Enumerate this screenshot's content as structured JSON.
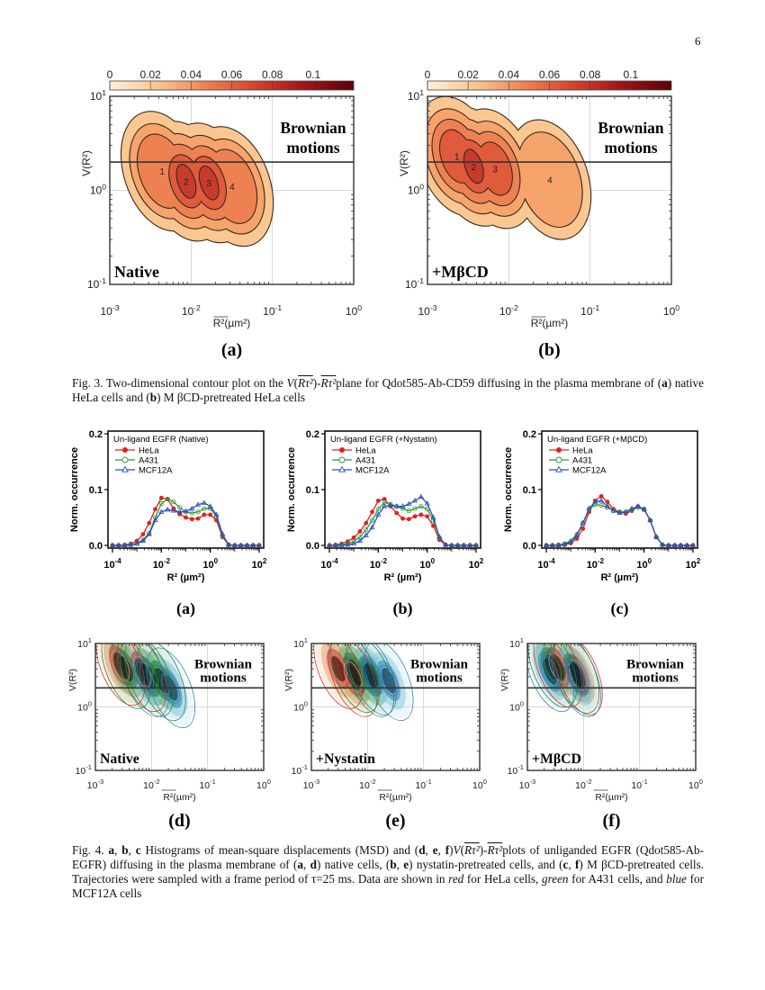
{
  "page_number": "6",
  "fig3": {
    "caption": [
      {
        "t": "Fig. 3. Two-dimensional contour plot on the ",
        "s": ""
      },
      {
        "t": "V",
        "s": "i"
      },
      {
        "t": "(",
        "s": ""
      },
      {
        "t": "Rτ²",
        "s": "ov"
      },
      {
        "t": ")-",
        "s": ""
      },
      {
        "t": "Rτ²",
        "s": "ov"
      },
      {
        "t": "plane for Qdot585-Ab-CD59 diffusing in the plasma membrane of (",
        "s": ""
      },
      {
        "t": "a",
        "s": "b"
      },
      {
        "t": ") native HeLa cells and (",
        "s": ""
      },
      {
        "t": "b",
        "s": "b"
      },
      {
        "t": ") M βCD-pretreated HeLa cells",
        "s": ""
      }
    ]
  },
  "fig4": {
    "caption": [
      {
        "t": "Fig. 4. ",
        "s": ""
      },
      {
        "t": "a",
        "s": "b"
      },
      {
        "t": ", ",
        "s": ""
      },
      {
        "t": "b",
        "s": "b"
      },
      {
        "t": ", ",
        "s": ""
      },
      {
        "t": "c",
        "s": "b"
      },
      {
        "t": " Histograms of mean-square displacements (MSD) and (",
        "s": ""
      },
      {
        "t": "d",
        "s": "b"
      },
      {
        "t": ", ",
        "s": ""
      },
      {
        "t": "e",
        "s": "b"
      },
      {
        "t": ", ",
        "s": ""
      },
      {
        "t": "f",
        "s": "b"
      },
      {
        "t": ")",
        "s": ""
      },
      {
        "t": "V",
        "s": "i"
      },
      {
        "t": "(",
        "s": ""
      },
      {
        "t": "Rτ²",
        "s": "ov"
      },
      {
        "t": ")-",
        "s": ""
      },
      {
        "t": "Rτ²",
        "s": "ov"
      },
      {
        "t": "plots of unliganded EGFR (Qdot585-Ab-EGFR) diffusing in the plasma membrane of (",
        "s": ""
      },
      {
        "t": "a",
        "s": "b"
      },
      {
        "t": ", ",
        "s": ""
      },
      {
        "t": "d",
        "s": "b"
      },
      {
        "t": ") native cells, (",
        "s": ""
      },
      {
        "t": "b",
        "s": "b"
      },
      {
        "t": ", ",
        "s": ""
      },
      {
        "t": "e",
        "s": "b"
      },
      {
        "t": ") nystatin-pretreated cells, and (",
        "s": ""
      },
      {
        "t": "c",
        "s": "b"
      },
      {
        "t": ", ",
        "s": ""
      },
      {
        "t": "f",
        "s": "b"
      },
      {
        "t": ") M βCD-pretreated cells. Trajectories were sampled with a frame period of τ=25 ms. Data are shown in ",
        "s": ""
      },
      {
        "t": "red",
        "s": "i"
      },
      {
        "t": " for HeLa cells, ",
        "s": ""
      },
      {
        "t": "green",
        "s": "i"
      },
      {
        "t": " for A431 cells, and ",
        "s": ""
      },
      {
        "t": "blue",
        "s": "i"
      },
      {
        "t": " for MCF12A cells",
        "s": ""
      }
    ]
  },
  "chart_data": [
    {
      "id": "fig3a",
      "type": "heatmap",
      "panel_label": "(a)",
      "xlabel": "R²(µm²)",
      "ylabel": "V(R²)",
      "x_scale": "log",
      "y_scale": "log",
      "xlim": [
        0.001,
        1
      ],
      "ylim": [
        0.1,
        10
      ],
      "x_ticks": [
        "10^-3",
        "10^-2",
        "10^-1",
        "10^0"
      ],
      "y_ticks": [
        "10^1",
        "10^0",
        "10^-1"
      ],
      "colorbar": {
        "ticks": [
          "0",
          "0.02",
          "0.04",
          "0.06",
          "0.08",
          "0.1"
        ],
        "range": [
          0,
          0.12
        ],
        "colors": [
          "#fdf1dc",
          "#f9c48e",
          "#ef8050",
          "#d6402c",
          "#9e1515",
          "#5c0008"
        ]
      },
      "threshold_line_y": 2,
      "annotations": [
        "Brownian",
        "motions",
        "Native"
      ],
      "peaks": [
        {
          "label": "1",
          "x": 0.0044,
          "y": 1.6,
          "levels": 3
        },
        {
          "label": "2",
          "x": 0.0087,
          "y": 1.25,
          "levels": 5
        },
        {
          "label": "3",
          "x": 0.0166,
          "y": 1.2,
          "levels": 5
        },
        {
          "label": "4",
          "x": 0.032,
          "y": 1.1,
          "levels": 3
        }
      ]
    },
    {
      "id": "fig3b",
      "type": "heatmap",
      "panel_label": "(b)",
      "xlabel": "R²(µm²)",
      "ylabel": "V(R²)",
      "x_scale": "log",
      "y_scale": "log",
      "xlim": [
        0.001,
        1
      ],
      "ylim": [
        0.1,
        10
      ],
      "x_ticks": [
        "10^-3",
        "10^-2",
        "10^-1",
        "10^0"
      ],
      "y_ticks": [
        "10^1",
        "10^0",
        "10^-1"
      ],
      "colorbar": {
        "ticks": [
          "0",
          "0.02",
          "0.04",
          "0.06",
          "0.08",
          "0.1"
        ],
        "range": [
          0,
          0.12
        ],
        "colors": [
          "#fdf1dc",
          "#f9c48e",
          "#ef8050",
          "#d6402c",
          "#9e1515",
          "#5c0008"
        ]
      },
      "threshold_line_y": 2,
      "annotations": [
        "Brownian",
        "motions",
        "+MβCD"
      ],
      "peaks": [
        {
          "label": "1",
          "x": 0.0023,
          "y": 2.3,
          "levels": 4
        },
        {
          "label": "2",
          "x": 0.0037,
          "y": 1.8,
          "levels": 5
        },
        {
          "label": "3",
          "x": 0.0068,
          "y": 1.7,
          "levels": 4
        },
        {
          "label": "4",
          "x": 0.032,
          "y": 1.3,
          "levels": 2
        }
      ]
    },
    {
      "id": "fig4a",
      "type": "line",
      "panel_label": "(a)",
      "legend_title": "Un-ligand EGFR (Native)",
      "legend_placement": "top-left",
      "xlabel": "R² (µm²)",
      "ylabel": "Norm. occurrence",
      "x_scale": "log",
      "xlim": [
        0.0001,
        100
      ],
      "ylim": [
        0,
        0.2
      ],
      "x_ticks": [
        "10^-4",
        "10^-2",
        "10^0",
        "10^2"
      ],
      "y_ticks": [
        "0.0",
        "0.1",
        "0.2"
      ],
      "x": [
        0.0001,
        0.000178,
        0.000316,
        0.000562,
        0.001,
        0.00178,
        0.00316,
        0.00562,
        0.01,
        0.0178,
        0.0316,
        0.0562,
        0.1,
        0.178,
        0.316,
        0.562,
        1,
        1.78,
        3.16,
        5.62,
        10,
        17.8,
        31.6,
        56.2,
        100
      ],
      "series": [
        {
          "name": "HeLa",
          "color": "#e3201c",
          "marker": "filled-circle",
          "values": [
            0,
            0,
            0.001,
            0.003,
            0.008,
            0.02,
            0.04,
            0.065,
            0.085,
            0.083,
            0.066,
            0.056,
            0.05,
            0.047,
            0.048,
            0.055,
            0.055,
            0.045,
            0.015,
            0.001,
            0,
            0,
            0,
            0,
            0
          ]
        },
        {
          "name": "A431",
          "color": "#2e9a3a",
          "marker": "open-circle",
          "values": [
            0,
            0,
            0,
            0.001,
            0.003,
            0.01,
            0.022,
            0.05,
            0.075,
            0.083,
            0.078,
            0.068,
            0.06,
            0.058,
            0.06,
            0.066,
            0.066,
            0.052,
            0.018,
            0.001,
            0,
            0,
            0,
            0,
            0
          ]
        },
        {
          "name": "MCF12A",
          "color": "#2b4fbf",
          "marker": "open-triangle",
          "values": [
            0,
            0,
            0,
            0.001,
            0.003,
            0.008,
            0.02,
            0.045,
            0.06,
            0.064,
            0.062,
            0.06,
            0.061,
            0.066,
            0.073,
            0.076,
            0.07,
            0.055,
            0.02,
            0.001,
            0,
            0,
            0,
            0,
            0
          ]
        }
      ]
    },
    {
      "id": "fig4b",
      "type": "line",
      "panel_label": "(b)",
      "legend_title": "Un-ligand EGFR (+Nystatin)",
      "legend_placement": "top-left",
      "xlabel": "R² (µm²)",
      "ylabel": "Norm. occurrence",
      "x_scale": "log",
      "xlim": [
        0.0001,
        100
      ],
      "ylim": [
        0,
        0.2
      ],
      "x_ticks": [
        "10^-4",
        "10^-2",
        "10^0",
        "10^2"
      ],
      "y_ticks": [
        "0.0",
        "0.1",
        "0.2"
      ],
      "x": [
        0.0001,
        0.000178,
        0.000316,
        0.000562,
        0.001,
        0.00178,
        0.00316,
        0.00562,
        0.01,
        0.0178,
        0.0316,
        0.0562,
        0.1,
        0.178,
        0.316,
        0.562,
        1,
        1.78,
        3.16,
        5.62,
        10,
        17.8,
        31.6,
        56.2,
        100
      ],
      "series": [
        {
          "name": "HeLa",
          "color": "#e3201c",
          "marker": "filled-circle",
          "values": [
            0,
            0.001,
            0.003,
            0.007,
            0.014,
            0.025,
            0.04,
            0.06,
            0.08,
            0.083,
            0.07,
            0.058,
            0.048,
            0.047,
            0.052,
            0.055,
            0.052,
            0.035,
            0.01,
            0.001,
            0,
            0,
            0,
            0,
            0
          ]
        },
        {
          "name": "A431",
          "color": "#2e9a3a",
          "marker": "open-circle",
          "values": [
            0,
            0,
            0.001,
            0.003,
            0.007,
            0.015,
            0.028,
            0.045,
            0.065,
            0.077,
            0.074,
            0.07,
            0.066,
            0.062,
            0.066,
            0.07,
            0.065,
            0.045,
            0.014,
            0.001,
            0,
            0,
            0,
            0,
            0
          ]
        },
        {
          "name": "MCF12A",
          "color": "#2b4fbf",
          "marker": "open-triangle",
          "values": [
            0,
            0,
            0,
            0.001,
            0.003,
            0.008,
            0.018,
            0.032,
            0.055,
            0.07,
            0.072,
            0.07,
            0.07,
            0.074,
            0.08,
            0.087,
            0.075,
            0.05,
            0.015,
            0.001,
            0,
            0,
            0,
            0,
            0
          ]
        }
      ]
    },
    {
      "id": "fig4c",
      "type": "line",
      "panel_label": "(c)",
      "legend_title": "Un-ligand EGFR (+MβCD)",
      "legend_placement": "top-left",
      "xlabel": "R² (µm²)",
      "ylabel": "Norm. occurrence",
      "x_scale": "log",
      "xlim": [
        0.0001,
        100
      ],
      "ylim": [
        0,
        0.2
      ],
      "x_ticks": [
        "10^-4",
        "10^-2",
        "10^0",
        "10^2"
      ],
      "y_ticks": [
        "0.0",
        "0.1",
        "0.2"
      ],
      "x": [
        0.0001,
        0.000178,
        0.000316,
        0.000562,
        0.001,
        0.00178,
        0.00316,
        0.00562,
        0.01,
        0.0178,
        0.0316,
        0.0562,
        0.1,
        0.178,
        0.316,
        0.562,
        1,
        1.78,
        3.16,
        5.62,
        10,
        17.8,
        31.6,
        56.2,
        100
      ],
      "series": [
        {
          "name": "HeLa",
          "color": "#e3201c",
          "marker": "filled-circle",
          "values": [
            0,
            0,
            0,
            0.001,
            0.004,
            0.012,
            0.03,
            0.06,
            0.08,
            0.088,
            0.078,
            0.065,
            0.06,
            0.057,
            0.062,
            0.07,
            0.065,
            0.045,
            0.015,
            0.001,
            0,
            0,
            0,
            0,
            0
          ]
        },
        {
          "name": "A431",
          "color": "#2e9a3a",
          "marker": "open-circle",
          "values": [
            0,
            0,
            0.001,
            0.003,
            0.008,
            0.02,
            0.04,
            0.065,
            0.073,
            0.072,
            0.068,
            0.062,
            0.06,
            0.06,
            0.064,
            0.068,
            0.064,
            0.045,
            0.015,
            0.001,
            0,
            0,
            0,
            0,
            0
          ]
        },
        {
          "name": "MCF12A",
          "color": "#2b4fbf",
          "marker": "open-triangle",
          "values": [
            0,
            0,
            0,
            0.002,
            0.006,
            0.018,
            0.04,
            0.066,
            0.078,
            0.08,
            0.07,
            0.062,
            0.058,
            0.06,
            0.066,
            0.07,
            0.065,
            0.045,
            0.015,
            0.001,
            0,
            0,
            0,
            0,
            0
          ]
        }
      ]
    },
    {
      "id": "fig4d",
      "type": "heatmap",
      "panel_label": "(d)",
      "xlabel": "R²(µm²)",
      "ylabel": "V(R²)",
      "x_scale": "log",
      "y_scale": "log",
      "xlim": [
        0.001,
        1
      ],
      "ylim": [
        0.1,
        10
      ],
      "x_ticks": [
        "10^-3",
        "10^-2",
        "10^-1",
        "10^0"
      ],
      "y_ticks": [
        "10^1",
        "10^0",
        "10^-1"
      ],
      "threshold_line_y": 2,
      "annotations": [
        "Brownian",
        "motions",
        "Native"
      ],
      "series": [
        {
          "name": "HeLa",
          "color": "#d7301f",
          "peaks": [
            {
              "x": 0.0028,
              "y": 4.5
            },
            {
              "x": 0.0068,
              "y": 3.6
            }
          ]
        },
        {
          "name": "A431",
          "color": "#1f8a3f",
          "peaks": [
            {
              "x": 0.0035,
              "y": 4.0
            },
            {
              "x": 0.009,
              "y": 3.0
            },
            {
              "x": 0.015,
              "y": 2.6
            }
          ]
        },
        {
          "name": "MCF12A",
          "color": "#2f7fb5",
          "peaks": [
            {
              "x": 0.0075,
              "y": 3.0
            },
            {
              "x": 0.022,
              "y": 2.0
            }
          ]
        }
      ]
    },
    {
      "id": "fig4e",
      "type": "heatmap",
      "panel_label": "(e)",
      "xlabel": "R²(µm²)",
      "ylabel": "V(R²)",
      "x_scale": "log",
      "y_scale": "log",
      "xlim": [
        0.001,
        1
      ],
      "ylim": [
        0.1,
        10
      ],
      "x_ticks": [
        "10^-3",
        "10^-2",
        "10^-1",
        "10^0"
      ],
      "y_ticks": [
        "10^1",
        "10^0",
        "10^-1"
      ],
      "threshold_line_y": 2,
      "annotations": [
        "Brownian",
        "motions",
        "+Nystatin"
      ],
      "series": [
        {
          "name": "HeLa",
          "color": "#d7301f",
          "peaks": [
            {
              "x": 0.003,
              "y": 4.0
            },
            {
              "x": 0.0055,
              "y": 3.0
            }
          ]
        },
        {
          "name": "A431",
          "color": "#1f8a3f",
          "peaks": [
            {
              "x": 0.006,
              "y": 3.5
            },
            {
              "x": 0.011,
              "y": 3.0
            }
          ]
        },
        {
          "name": "MCF12A",
          "color": "#2f7fb5",
          "peaks": [
            {
              "x": 0.012,
              "y": 3.2
            },
            {
              "x": 0.024,
              "y": 2.6
            }
          ]
        }
      ]
    },
    {
      "id": "fig4f",
      "type": "heatmap",
      "panel_label": "(f)",
      "xlabel": "R²(µm²)",
      "ylabel": "V(R²)",
      "x_scale": "log",
      "y_scale": "log",
      "xlim": [
        0.001,
        1
      ],
      "ylim": [
        0.1,
        10
      ],
      "x_ticks": [
        "10^-3",
        "10^-2",
        "10^-1",
        "10^0"
      ],
      "y_ticks": [
        "10^1",
        "10^0",
        "10^-1"
      ],
      "threshold_line_y": 2,
      "annotations": [
        "Brownian",
        "motions",
        "+MβCD"
      ],
      "series": [
        {
          "name": "HeLa",
          "color": "#d7301f",
          "peaks": [
            {
              "x": 0.0035,
              "y": 4.2
            },
            {
              "x": 0.008,
              "y": 3.2
            }
          ]
        },
        {
          "name": "A431",
          "color": "#1f8a3f",
          "peaks": [
            {
              "x": 0.0028,
              "y": 4.2
            },
            {
              "x": 0.007,
              "y": 3.4
            }
          ]
        },
        {
          "name": "MCF12A",
          "color": "#2f7fb5",
          "peaks": [
            {
              "x": 0.0025,
              "y": 3.6
            },
            {
              "x": 0.0075,
              "y": 3.0
            }
          ]
        }
      ]
    }
  ]
}
